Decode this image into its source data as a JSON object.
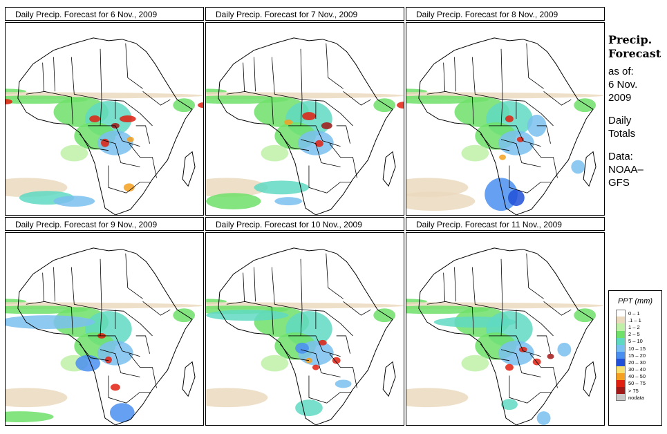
{
  "panels": [
    {
      "title": "Daily Precip. Forecast for  6 Nov., 2009",
      "variant": 0
    },
    {
      "title": "Daily Precip. Forecast for  7 Nov., 2009",
      "variant": 1
    },
    {
      "title": "Daily Precip. Forecast for  8 Nov., 2009",
      "variant": 2
    },
    {
      "title": "Daily Precip. Forecast for  9 Nov., 2009",
      "variant": 3
    },
    {
      "title": "Daily Precip. Forecast for  10 Nov., 2009",
      "variant": 4
    },
    {
      "title": "Daily Precip. Forecast for  11 Nov., 2009",
      "variant": 5
    }
  ],
  "side": {
    "heading1": "Precip.",
    "heading2": "Forecast",
    "asof1": "as of:",
    "asof2": "6 Nov.",
    "asof3": "2009",
    "daily1": "Daily",
    "daily2": "Totals",
    "data1": "Data:",
    "data2": "NOAA–",
    "data3": "GFS"
  },
  "legend": {
    "title": "PPT (mm)",
    "classes": [
      {
        "label": "0 – 1",
        "color": "#ffffff"
      },
      {
        "label": ".1 – 1",
        "color": "#ebd9be"
      },
      {
        "label": "1 – 2",
        "color": "#bff0a8"
      },
      {
        "label": "2 – 5",
        "color": "#6fe06a"
      },
      {
        "label": "5 – 10",
        "color": "#5fd9c2"
      },
      {
        "label": "10 – 15",
        "color": "#7ac0f0"
      },
      {
        "label": "15 – 20",
        "color": "#4a8ff0"
      },
      {
        "label": "20 – 30",
        "color": "#2050d8"
      },
      {
        "label": "30 – 40",
        "color": "#f5e070"
      },
      {
        "label": "40 – 50",
        "color": "#f5a020"
      },
      {
        "label": "50 – 75",
        "color": "#e02010"
      },
      {
        "label": "> 75",
        "color": "#a01818"
      },
      {
        "label": "nodata",
        "color": "#c8c8c8"
      }
    ]
  }
}
